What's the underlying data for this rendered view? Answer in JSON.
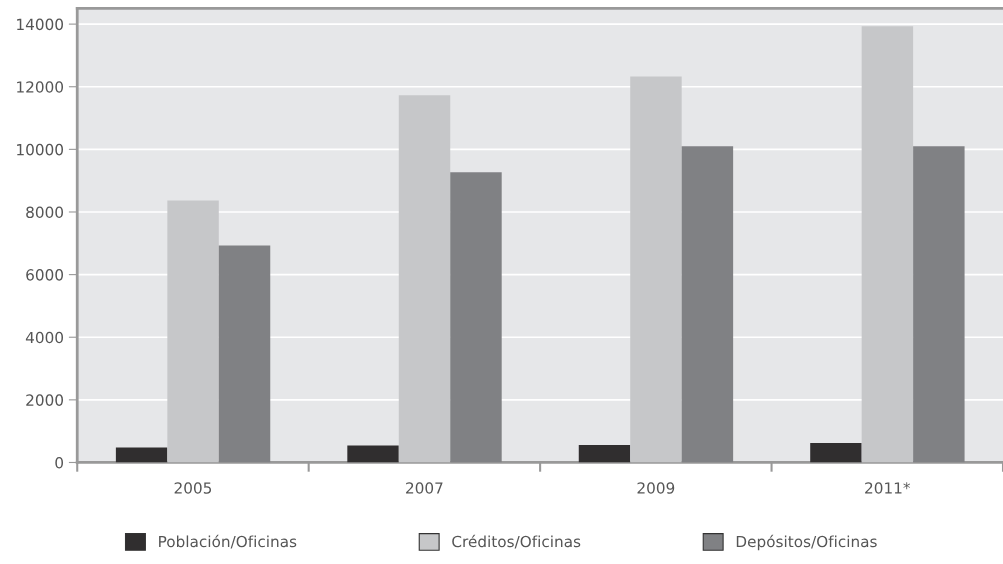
{
  "chart_data": {
    "type": "bar",
    "categories": [
      "2005",
      "2007",
      "2009",
      "2011*"
    ],
    "series": [
      {
        "name": "Población/Oficinas",
        "color": "#302e2f",
        "values": [
          480,
          540,
          560,
          620
        ]
      },
      {
        "name": "Créditos/Oficinas",
        "color": "#c6c7c9",
        "values": [
          8370,
          11730,
          12330,
          13930
        ]
      },
      {
        "name": "Depósitos/Oficinas",
        "color": "#808184",
        "values": [
          6930,
          9270,
          10100,
          10100
        ]
      }
    ],
    "ylim": [
      0,
      14500
    ],
    "yticks": [
      0,
      2000,
      4000,
      6000,
      8000,
      10000,
      12000,
      14000
    ],
    "grid": "y",
    "legend": "bottom"
  }
}
